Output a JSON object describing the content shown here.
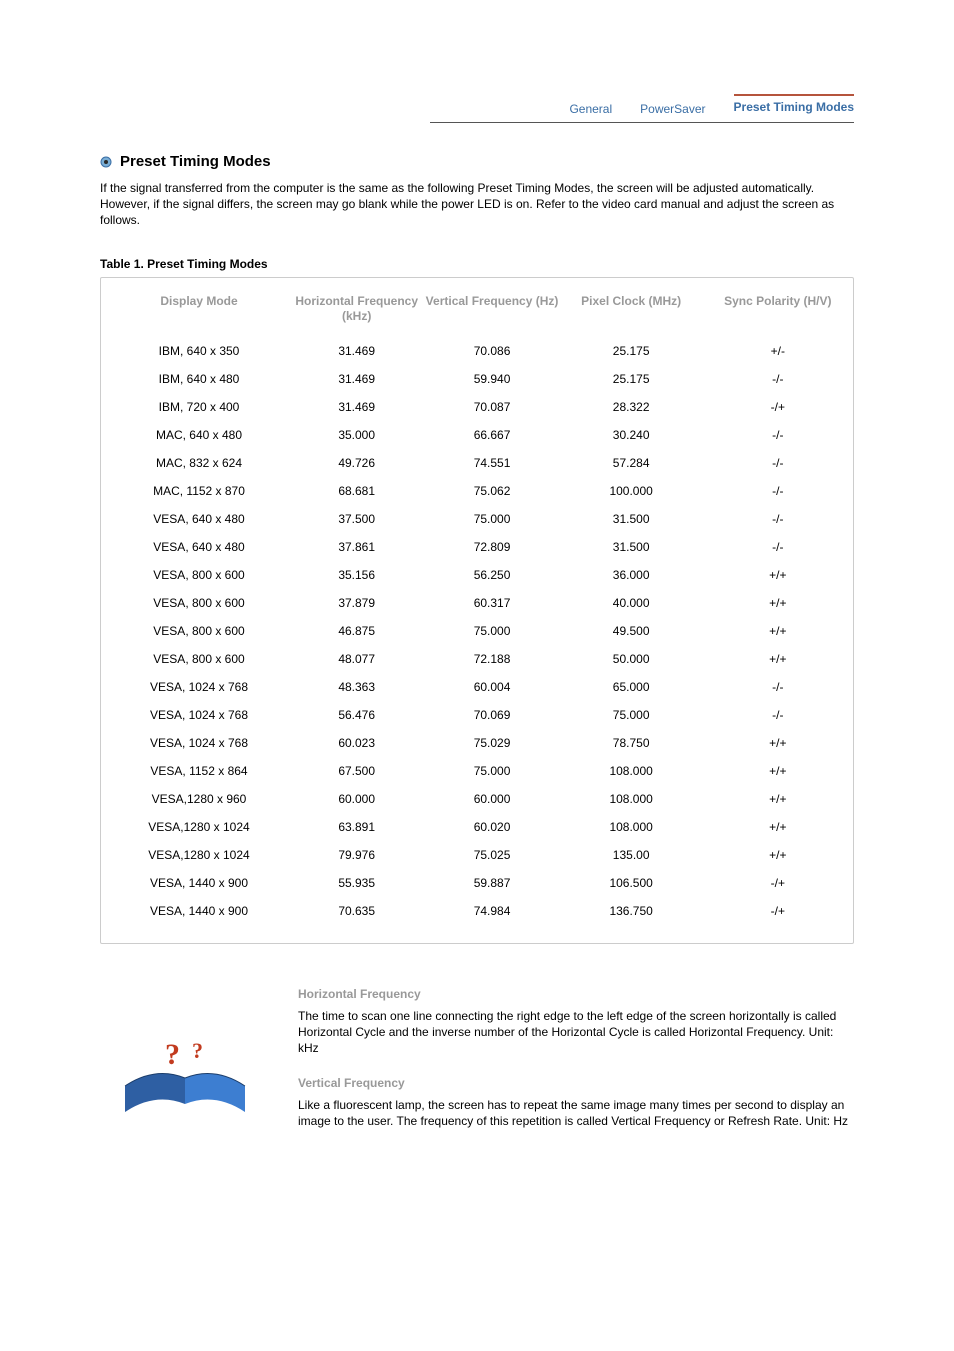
{
  "tabs": {
    "items": [
      {
        "label": "General"
      },
      {
        "label": "PowerSaver"
      },
      {
        "label": "Preset Timing Modes"
      }
    ],
    "active_index": 2,
    "active_color": "#3a6ea5",
    "active_border_color": "#b5543c"
  },
  "section": {
    "title": "Preset Timing Modes",
    "intro": "If the signal transferred from the computer is the same as the following Preset Timing Modes, the screen will be adjusted automatically. However, if the signal differs, the screen may go blank while the power LED is on. Refer to the video card manual and adjust the screen as follows."
  },
  "table": {
    "caption": "Table 1. Preset Timing Modes",
    "columns": [
      "Display Mode",
      "Horizontal Frequency (kHz)",
      "Vertical Frequency (Hz)",
      "Pixel Clock (MHz)",
      "Sync Polarity (H/V)"
    ],
    "header_color": "#999999",
    "border_color": "#cccccc",
    "rows": [
      [
        "IBM, 640 x 350",
        "31.469",
        "70.086",
        "25.175",
        "+/-"
      ],
      [
        "IBM, 640 x 480",
        "31.469",
        "59.940",
        "25.175",
        "-/-"
      ],
      [
        "IBM, 720 x 400",
        "31.469",
        "70.087",
        "28.322",
        "-/+"
      ],
      [
        "MAC, 640 x 480",
        "35.000",
        "66.667",
        "30.240",
        "-/-"
      ],
      [
        "MAC, 832 x 624",
        "49.726",
        "74.551",
        "57.284",
        "-/-"
      ],
      [
        "MAC, 1152 x 870",
        "68.681",
        "75.062",
        "100.000",
        "-/-"
      ],
      [
        "VESA, 640 x 480",
        "37.500",
        "75.000",
        "31.500",
        "-/-"
      ],
      [
        "VESA, 640 x 480",
        "37.861",
        "72.809",
        "31.500",
        "-/-"
      ],
      [
        "VESA, 800 x 600",
        "35.156",
        "56.250",
        "36.000",
        "+/+"
      ],
      [
        "VESA, 800 x 600",
        "37.879",
        "60.317",
        "40.000",
        "+/+"
      ],
      [
        "VESA, 800 x 600",
        "46.875",
        "75.000",
        "49.500",
        "+/+"
      ],
      [
        "VESA, 800 x 600",
        "48.077",
        "72.188",
        "50.000",
        "+/+"
      ],
      [
        "VESA, 1024 x 768",
        "48.363",
        "60.004",
        "65.000",
        "-/-"
      ],
      [
        "VESA, 1024 x 768",
        "56.476",
        "70.069",
        "75.000",
        "-/-"
      ],
      [
        "VESA, 1024 x 768",
        "60.023",
        "75.029",
        "78.750",
        "+/+"
      ],
      [
        "VESA, 1152 x 864",
        "67.500",
        "75.000",
        "108.000",
        "+/+"
      ],
      [
        "VESA,1280 x 960",
        "60.000",
        "60.000",
        "108.000",
        "+/+"
      ],
      [
        "VESA,1280 x 1024",
        "63.891",
        "60.020",
        "108.000",
        "+/+"
      ],
      [
        "VESA,1280 x 1024",
        "79.976",
        "75.025",
        "135.00",
        "+/+"
      ],
      [
        "VESA, 1440 x 900",
        "55.935",
        "59.887",
        "106.500",
        "-/+"
      ],
      [
        "VESA, 1440 x 900",
        "70.635",
        "74.984",
        "136.750",
        "-/+"
      ]
    ]
  },
  "definitions": {
    "horizontal": {
      "title": "Horizontal Frequency",
      "text": "The time to scan one line connecting the right edge to the left edge of the screen horizontally is called Horizontal Cycle and the inverse number of the Horizontal Cycle is called Horizontal Frequency. Unit: kHz"
    },
    "vertical": {
      "title": "Vertical Frequency",
      "text": "Like a fluorescent lamp, the screen has to repeat the same image many times per second to display an image to the user. The frequency of this repetition is called Vertical Frequency or Refresh Rate. Unit: Hz"
    }
  },
  "colors": {
    "page_bg": "#ffffff",
    "text": "#000000",
    "muted": "#999999",
    "link": "#3a6ea5"
  }
}
